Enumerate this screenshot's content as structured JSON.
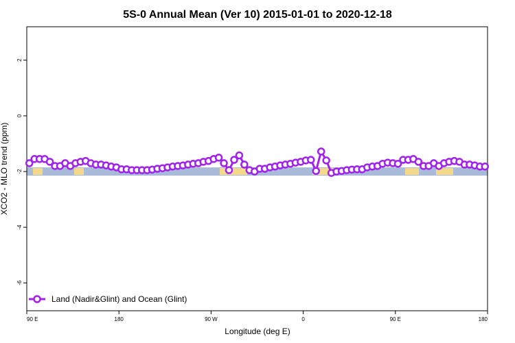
{
  "chart_data": {
    "type": "line",
    "title": "5S-0 Annual Mean (Ver 10)   2015-01-01 to 2020-12-18",
    "xlabel": "Longitude (deg E)",
    "ylabel": "XCO2 - MLO trend (ppm)",
    "x_ticks": [
      {
        "value": 90,
        "label": "90 E"
      },
      {
        "value": 180,
        "label": "180"
      },
      {
        "value": 270,
        "label": "90 W"
      },
      {
        "value": 360,
        "label": "0"
      },
      {
        "value": 450,
        "label": "90 E"
      },
      {
        "value": 540,
        "label": "180"
      }
    ],
    "y_ticks": [
      {
        "value": 2,
        "label": "2"
      },
      {
        "value": 0,
        "label": "0"
      },
      {
        "value": -2,
        "label": "-2"
      },
      {
        "value": -4,
        "label": "-4"
      },
      {
        "value": -6,
        "label": "-6"
      }
    ],
    "xlim": [
      90,
      540
    ],
    "ylim": [
      -7,
      3.2
    ],
    "grid": false,
    "legend_position": "bottom-left",
    "colors": {
      "series": "#a020f0",
      "ocean": "#a9bbd9",
      "land": "#f5d98a"
    },
    "series": [
      {
        "name": "Land (Nadir&Glint) and Ocean (Glint)",
        "x": [
          92.5,
          97.5,
          102.5,
          107.5,
          112.5,
          117.5,
          122.5,
          127.5,
          132.5,
          137.5,
          142.5,
          147.5,
          152.5,
          157.5,
          162.5,
          167.5,
          172.5,
          177.5,
          182.5,
          187.5,
          192.5,
          197.5,
          202.5,
          207.5,
          212.5,
          217.5,
          222.5,
          227.5,
          232.5,
          237.5,
          242.5,
          247.5,
          252.5,
          257.5,
          262.5,
          267.5,
          272.5,
          277.5,
          282.5,
          287.5,
          292.5,
          297.5,
          302.5,
          307.5,
          312.5,
          317.5,
          322.5,
          327.5,
          332.5,
          337.5,
          342.5,
          347.5,
          352.5,
          357.5,
          362.5,
          367.5,
          372.5,
          377.5,
          382.5,
          387.5,
          392.5,
          397.5,
          402.5,
          407.5,
          412.5,
          417.5,
          422.5,
          427.5,
          432.5,
          437.5,
          442.5,
          447.5,
          452.5,
          457.5,
          462.5,
          467.5,
          472.5,
          477.5,
          482.5,
          487.5,
          492.5,
          497.5,
          502.5,
          507.5,
          512.5,
          517.5,
          522.5,
          527.5,
          532.5,
          537.5
        ],
        "y": [
          -1.7,
          -1.55,
          -1.55,
          -1.55,
          -1.65,
          -1.8,
          -1.8,
          -1.7,
          -1.8,
          -1.7,
          -1.65,
          -1.62,
          -1.7,
          -1.75,
          -1.75,
          -1.78,
          -1.82,
          -1.85,
          -1.92,
          -1.92,
          -1.95,
          -1.95,
          -1.95,
          -1.95,
          -1.93,
          -1.9,
          -1.88,
          -1.85,
          -1.82,
          -1.8,
          -1.78,
          -1.75,
          -1.72,
          -1.7,
          -1.65,
          -1.62,
          -1.55,
          -1.5,
          -1.7,
          -1.95,
          -1.58,
          -1.42,
          -1.75,
          -1.95,
          -2.0,
          -1.9,
          -1.9,
          -1.85,
          -1.82,
          -1.78,
          -1.75,
          -1.72,
          -1.68,
          -1.65,
          -1.6,
          -1.58,
          -1.98,
          -1.28,
          -1.6,
          -2.05,
          -2.0,
          -1.98,
          -1.95,
          -1.93,
          -1.92,
          -1.92,
          -1.85,
          -1.82,
          -1.8,
          -1.72,
          -1.68,
          -1.7,
          -1.72,
          -1.58,
          -1.58,
          -1.55,
          -1.65,
          -1.8,
          -1.8,
          -1.7,
          -1.8,
          -1.7,
          -1.65,
          -1.62,
          -1.65,
          -1.75,
          -1.75,
          -1.78,
          -1.82,
          -1.82
        ]
      }
    ]
  }
}
